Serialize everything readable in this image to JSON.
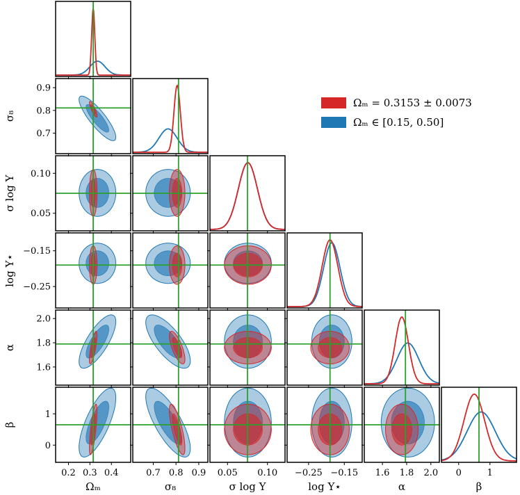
{
  "chart_data": {
    "type": "corner",
    "parameters": [
      {
        "key": "om",
        "label": "Ωₘ",
        "truth": 0.3153,
        "lim": [
          0.14,
          0.49
        ],
        "ticks": [
          0.2,
          0.3,
          0.4
        ],
        "tick_labels": [
          "0.2",
          "0.3",
          "0.4"
        ]
      },
      {
        "key": "s8",
        "label": "σ₈",
        "truth": 0.811,
        "lim": [
          0.61,
          0.94
        ],
        "ticks": [
          0.7,
          0.8,
          0.9
        ],
        "tick_labels": [
          "0.7",
          "0.8",
          "0.9"
        ]
      },
      {
        "key": "sly",
        "label": "σ log Y",
        "truth": 0.075,
        "lim": [
          0.028,
          0.122
        ],
        "ticks": [
          0.05,
          0.1
        ],
        "tick_labels": [
          "0.05",
          "0.10"
        ]
      },
      {
        "key": "lys",
        "label": "log Y⋆",
        "truth": -0.19,
        "lim": [
          -0.31,
          -0.1
        ],
        "ticks": [
          -0.25,
          -0.15
        ],
        "tick_labels": [
          "−0.25",
          "−0.15"
        ]
      },
      {
        "key": "alpha",
        "label": "α",
        "truth": 1.79,
        "lim": [
          1.45,
          2.07
        ],
        "ticks": [
          1.6,
          1.8,
          2.0
        ],
        "tick_labels": [
          "1.6",
          "1.8",
          "2.0"
        ]
      },
      {
        "key": "beta",
        "label": "β",
        "truth": 0.65,
        "lim": [
          -0.55,
          1.85
        ],
        "ticks": [
          0,
          1
        ],
        "tick_labels": [
          "0",
          "1"
        ]
      }
    ],
    "series": [
      {
        "name": "Ωₘ = 0.3153 ± 0.0073",
        "color": "#d62728",
        "mean": [
          0.3153,
          0.805,
          0.0755,
          -0.19,
          1.76,
          0.5
        ],
        "sd": [
          0.0073,
          0.014,
          0.012,
          0.022,
          0.055,
          0.33
        ]
      },
      {
        "name": "Ωₘ ∈ [0.15, 0.50]",
        "color": "#1f77b4",
        "mean": [
          0.335,
          0.765,
          0.0755,
          -0.185,
          1.81,
          0.72
        ],
        "sd": [
          0.035,
          0.04,
          0.012,
          0.023,
          0.09,
          0.45
        ]
      }
    ],
    "correlations": {
      "0-1": -0.85,
      "0-4": 0.75,
      "0-5": 0.72,
      "1-4": -0.72,
      "1-5": -0.75
    },
    "truth_color": "#2ca02c",
    "legend_position": "upper-right",
    "grid": false
  },
  "legend": {
    "red_label": "Ωₘ = 0.3153 ± 0.0073",
    "blue_label": "Ωₘ ∈ [0.15, 0.50]"
  }
}
